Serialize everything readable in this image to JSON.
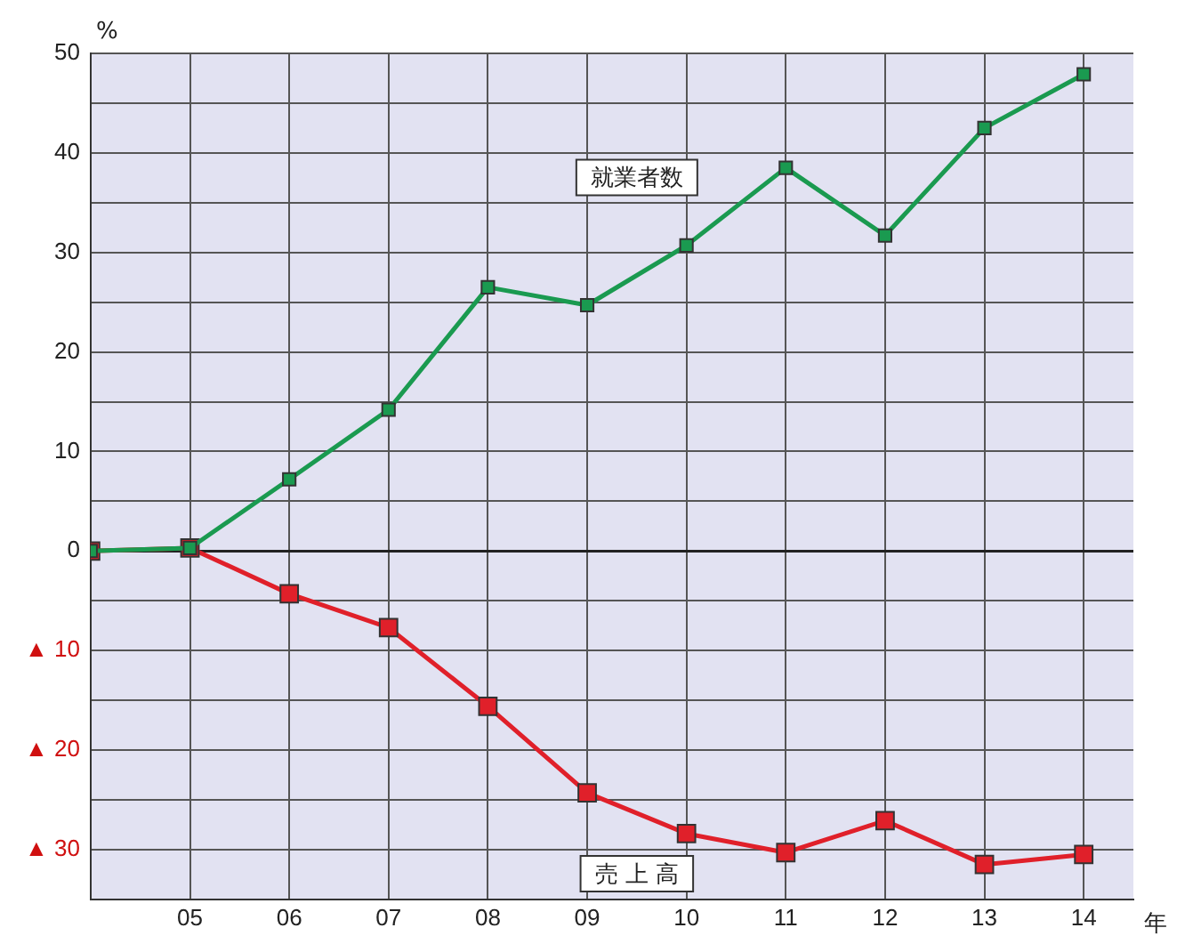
{
  "chart_data": {
    "type": "line",
    "ylabel": "%",
    "xlabel": "年",
    "x": [
      4,
      5,
      6,
      7,
      8,
      9,
      10,
      11,
      12,
      13,
      14
    ],
    "xlim": [
      4,
      14.5
    ],
    "xticks": [
      {
        "value": 4,
        "label": null
      },
      {
        "value": 5,
        "label": "05"
      },
      {
        "value": 6,
        "label": "06"
      },
      {
        "value": 7,
        "label": "07"
      },
      {
        "value": 8,
        "label": "08"
      },
      {
        "value": 9,
        "label": "09"
      },
      {
        "value": 10,
        "label": "10"
      },
      {
        "value": 11,
        "label": "11"
      },
      {
        "value": 12,
        "label": "12"
      },
      {
        "value": 13,
        "label": "13"
      },
      {
        "value": 14,
        "label": "14"
      }
    ],
    "ylim": [
      -35,
      50
    ],
    "yticks": [
      {
        "value": -35,
        "label": null
      },
      {
        "value": -30,
        "label": "▲ 30"
      },
      {
        "value": -25,
        "label": null
      },
      {
        "value": -20,
        "label": "▲ 20"
      },
      {
        "value": -15,
        "label": null
      },
      {
        "value": -10,
        "label": "▲ 10"
      },
      {
        "value": -5,
        "label": null
      },
      0,
      {
        "value": 5,
        "label": null
      },
      10,
      {
        "value": 15,
        "label": null
      },
      20,
      {
        "value": 25,
        "label": null
      },
      30,
      {
        "value": 35,
        "label": null
      },
      40,
      {
        "value": 45,
        "label": null
      },
      50
    ],
    "series": [
      {
        "name": "就業者数",
        "color": "#1a9a50",
        "values": [
          0,
          0.3,
          7.2,
          14.2,
          26.5,
          24.7,
          30.7,
          38.5,
          31.7,
          42.5,
          47.9
        ]
      },
      {
        "name": "売 上 高",
        "color": "#e0202a",
        "values": [
          0,
          0.3,
          -4.3,
          -7.7,
          -15.6,
          -24.3,
          -28.4,
          -30.3,
          -27.1,
          -31.5,
          -30.5
        ]
      }
    ],
    "grid": true,
    "legend": false,
    "marker": "square",
    "line_style": "solid"
  }
}
